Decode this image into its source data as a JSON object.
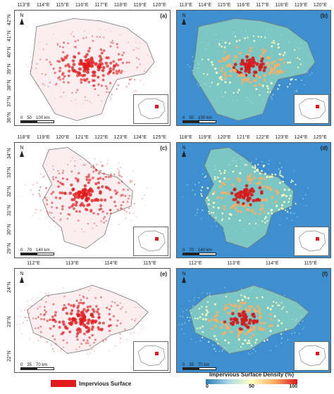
{
  "panels": [
    {
      "id": "a",
      "label": "(a)",
      "style": "binary",
      "lon_ticks": [
        "113°E",
        "114°E",
        "115°E",
        "116°E",
        "117°E",
        "118°E",
        "119°E",
        "120°E"
      ],
      "lat_ticks": [
        "42°N",
        "41°N",
        "40°N",
        "39°N",
        "38°N",
        "37°N",
        "36°N"
      ],
      "scale": [
        "0",
        "50",
        "100 km"
      ],
      "north": "N"
    },
    {
      "id": "b",
      "label": "(b)",
      "style": "density",
      "lon_ticks": [
        "113°E",
        "114°E",
        "115°E",
        "116°E",
        "117°E",
        "118°E",
        "119°E",
        "120°E"
      ],
      "lat_ticks": [],
      "scale": [
        "0",
        "50",
        "100 km"
      ],
      "north": "N"
    },
    {
      "id": "c",
      "label": "(c)",
      "style": "binary",
      "lon_ticks": [
        "118°E",
        "119°E",
        "120°E",
        "121°E",
        "122°E",
        "123°E",
        "124°E",
        "125°E"
      ],
      "lat_ticks": [
        "34°N",
        "33°N",
        "32°N",
        "31°N",
        "30°N",
        "29°N"
      ],
      "scale": [
        "0",
        "70",
        "140 km"
      ],
      "north": "N"
    },
    {
      "id": "d",
      "label": "(d)",
      "style": "density",
      "lon_ticks": [
        "118°E",
        "119°E",
        "120°E",
        "121°E",
        "122°E",
        "123°E",
        "124°E",
        "125°E"
      ],
      "lat_ticks": [],
      "scale": [
        "0",
        "70",
        "140 km"
      ],
      "north": "N"
    },
    {
      "id": "e",
      "label": "(e)",
      "style": "binary",
      "lon_ticks": [
        "112°E",
        "113°E",
        "114°E",
        "115°E"
      ],
      "lat_ticks": [
        "24°N",
        "23°N",
        "22°N"
      ],
      "scale": [
        "0",
        "35",
        "70 km"
      ],
      "north": "N"
    },
    {
      "id": "f",
      "label": "(f)",
      "style": "density",
      "lon_ticks": [
        "112°E",
        "113°E",
        "114°E",
        "115°E"
      ],
      "lat_ticks": [],
      "scale": [
        "0",
        "35",
        "70 km"
      ],
      "north": "N"
    }
  ],
  "legend": {
    "impervious_label": "Impervious Surface",
    "impervious_color": "#e31a1c",
    "density_title": "Impervious Surface Density (%)",
    "density_ticks": [
      "0",
      "50",
      "100"
    ],
    "density_colors": [
      "#2c7bb6",
      "#abd9e9",
      "#ffffbf",
      "#fdae61",
      "#d7191c"
    ]
  }
}
